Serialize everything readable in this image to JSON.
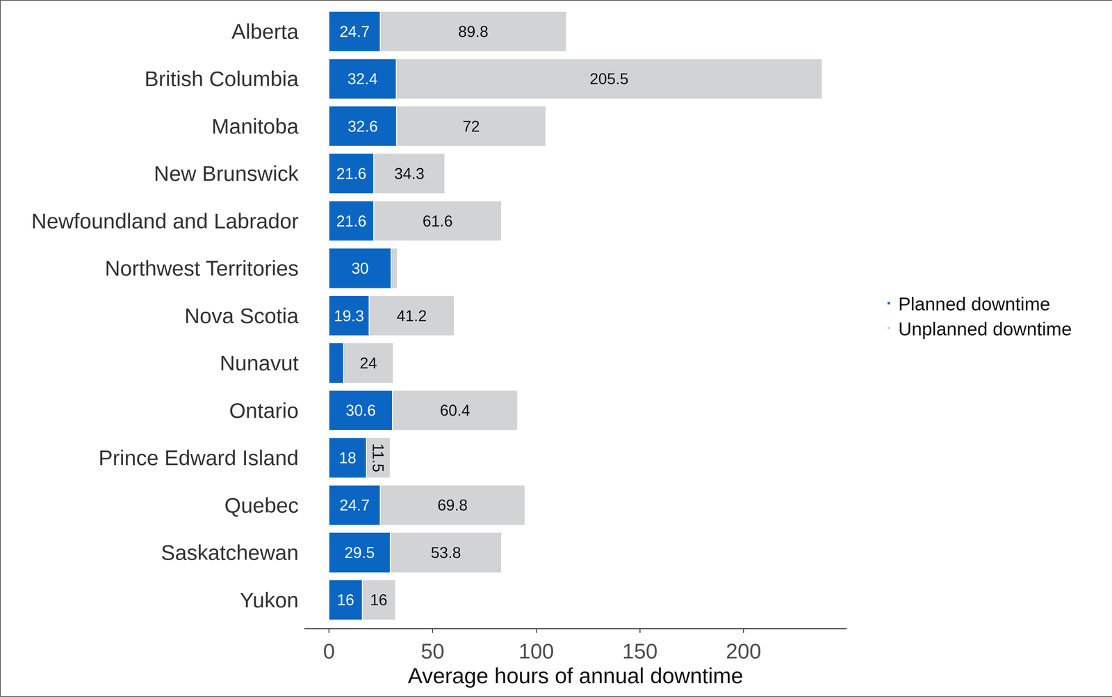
{
  "chart_data": {
    "type": "bar",
    "orientation": "horizontal",
    "stacked": true,
    "data_labels": true,
    "grid": false,
    "legend": "right",
    "x_label": "Average hours of annual downtime",
    "categories": [
      "Alberta",
      "British Columbia",
      "Manitoba",
      "New Brunswick",
      "Newfoundland and Labrador",
      "Northwest Territories",
      "Nova Scotia",
      "Nunavut",
      "Ontario",
      "Prince Edward Island",
      "Quebec",
      "Saskatchewan",
      "Yukon"
    ],
    "series": [
      {
        "name": "Planned downtime",
        "color": "#0a66c2",
        "values": [
          24.7,
          32.4,
          32.6,
          21.6,
          21.6,
          30,
          19.3,
          7,
          30.6,
          18,
          24.7,
          29.5,
          16
        ],
        "value_labels": [
          "24.7",
          "32.4",
          "32.6",
          "21.6",
          "21.6",
          "30",
          "19.3",
          null,
          "30.6",
          "18",
          "24.7",
          "29.5",
          "16"
        ]
      },
      {
        "name": "Unplanned downtime",
        "color": "#d1d3d4",
        "values": [
          89.8,
          205.5,
          72,
          34.3,
          61.6,
          3,
          41.2,
          24,
          60.4,
          11.5,
          69.8,
          53.8,
          16
        ],
        "value_labels": [
          "89.8",
          "205.5",
          "72",
          "34.3",
          "61.6",
          null,
          "41.2",
          "24",
          "60.4",
          "11.5",
          "69.8",
          "53.8",
          "16"
        ]
      }
    ],
    "xlim": [
      -11.9,
      249.8
    ],
    "xticks": [
      0,
      50,
      100,
      150,
      200
    ]
  }
}
